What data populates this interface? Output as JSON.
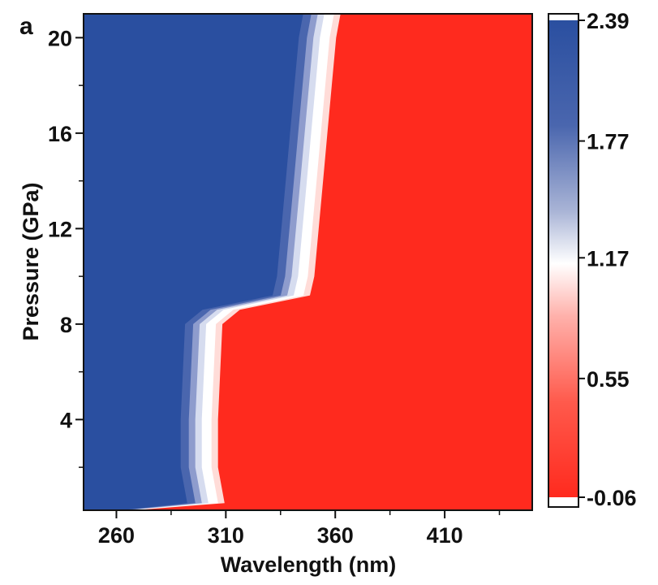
{
  "panel_label": "a",
  "chart_data": {
    "type": "heatmap",
    "title": "",
    "xlabel": "Wavelength (nm)",
    "ylabel": "Pressure (GPa)",
    "xlim": [
      245,
      450
    ],
    "ylim": [
      0.2,
      21
    ],
    "x_ticks": [
      260,
      310,
      360,
      410
    ],
    "y_ticks": [
      4,
      8,
      12,
      16,
      20
    ],
    "colorbar": {
      "min": -0.06,
      "max": 2.39,
      "ticks": [
        2.39,
        1.77,
        1.17,
        0.55,
        -0.06
      ],
      "tick_labels": [
        "2.39",
        "1.77",
        "1.17",
        "0.55",
        "-0.06"
      ],
      "low_color": "#ff2a1e",
      "mid_color": "#ffffff",
      "high_color": "#2a4fa0"
    },
    "contour_boundary": {
      "description_level": 1.17,
      "pressure": [
        0.5,
        2,
        4,
        6,
        8,
        8.6,
        9.2,
        10,
        12,
        14,
        16,
        18,
        20,
        21
      ],
      "wavelength": [
        302,
        299,
        299,
        300,
        301,
        309,
        341,
        343,
        345,
        347,
        349,
        351,
        353,
        355
      ]
    }
  }
}
